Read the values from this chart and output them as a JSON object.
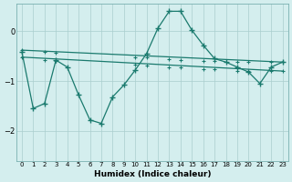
{
  "xlabel": "Humidex (Indice chaleur)",
  "bg_color": "#d4eeee",
  "line_color": "#1a7a6e",
  "grid_color": "#aacece",
  "xlim": [
    -0.5,
    23.5
  ],
  "ylim": [
    -2.6,
    0.55
  ],
  "yticks": [
    0,
    -1,
    -2
  ],
  "xticks": [
    0,
    1,
    2,
    3,
    4,
    5,
    6,
    7,
    8,
    9,
    10,
    11,
    12,
    13,
    14,
    15,
    16,
    17,
    18,
    19,
    20,
    21,
    22,
    23
  ],
  "line1_x": [
    0,
    1,
    2,
    3,
    4,
    5,
    6,
    7,
    8,
    9,
    10,
    11,
    12,
    13,
    14,
    15,
    16,
    17,
    18,
    19,
    20,
    21,
    22,
    23
  ],
  "line1_y": [
    -0.42,
    -1.55,
    -1.45,
    -0.58,
    -0.72,
    -1.28,
    -1.78,
    -1.85,
    -1.32,
    -1.08,
    -0.78,
    -0.45,
    0.06,
    0.4,
    0.4,
    0.02,
    -0.28,
    -0.55,
    -0.62,
    -0.72,
    -0.82,
    -1.05,
    -0.72,
    -0.62
  ],
  "line2_x": [
    0,
    23
  ],
  "line2_y": [
    -0.38,
    -0.62
  ],
  "line3_x": [
    0,
    23
  ],
  "line3_y": [
    -0.52,
    -0.8
  ],
  "line2_markers_x": [
    0,
    2,
    3,
    10,
    11,
    13,
    14,
    16,
    17,
    19,
    20,
    22,
    23
  ],
  "line2_markers_y": [
    -0.38,
    -0.42,
    -0.44,
    -0.52,
    -0.53,
    -0.56,
    -0.57,
    -0.59,
    -0.6,
    -0.62,
    -0.62,
    -0.62,
    -0.62
  ],
  "line3_markers_x": [
    0,
    2,
    3,
    10,
    11,
    13,
    14,
    16,
    17,
    19,
    20,
    22,
    23
  ],
  "line3_markers_y": [
    -0.52,
    -0.57,
    -0.59,
    -0.67,
    -0.68,
    -0.72,
    -0.73,
    -0.76,
    -0.77,
    -0.8,
    -0.8,
    -0.8,
    -0.8
  ]
}
